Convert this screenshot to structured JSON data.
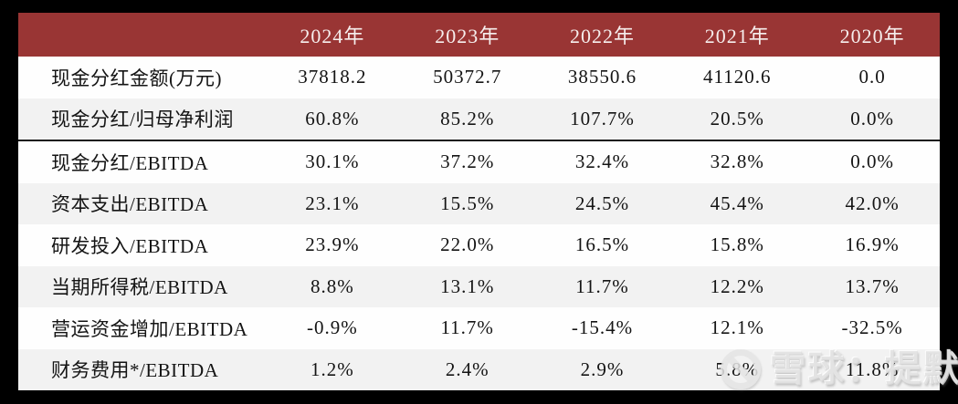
{
  "colors": {
    "header_bg": "#993534",
    "header_fg": "#f6eeed",
    "row_bg": "#fefefe",
    "row_alt_bg": "#f2f2f2",
    "frame_bg": "#000000",
    "text": "#141414"
  },
  "chart_data": {
    "type": "table",
    "columns": [
      "",
      "2024年",
      "2023年",
      "2022年",
      "2021年",
      "2020年"
    ],
    "rows": [
      {
        "label": "现金分红金额(万元)",
        "values": [
          "37818.2",
          "50372.7",
          "38550.6",
          "41120.6",
          "0.0"
        ]
      },
      {
        "label": "现金分红/归母净利润",
        "values": [
          "60.8%",
          "85.2%",
          "107.7%",
          "20.5%",
          "0.0%"
        ]
      },
      {
        "label": "现金分红/EBITDA",
        "values": [
          "30.1%",
          "37.2%",
          "32.4%",
          "32.8%",
          "0.0%"
        ]
      },
      {
        "label": "资本支出/EBITDA",
        "values": [
          "23.1%",
          "15.5%",
          "24.5%",
          "45.4%",
          "42.0%"
        ]
      },
      {
        "label": "研发投入/EBITDA",
        "values": [
          "23.9%",
          "22.0%",
          "16.5%",
          "15.8%",
          "16.9%"
        ]
      },
      {
        "label": "当期所得税/EBITDA",
        "values": [
          "8.8%",
          "13.1%",
          "11.7%",
          "12.2%",
          "13.7%"
        ]
      },
      {
        "label": "营运资金增加/EBITDA",
        "values": [
          "-0.9%",
          "11.7%",
          "-15.4%",
          "12.1%",
          "-32.5%"
        ]
      },
      {
        "label": "财务费用*/EBITDA",
        "values": [
          "1.2%",
          "2.4%",
          "2.9%",
          "5.8%",
          "11.8%"
        ]
      }
    ],
    "divider_after_row_index": 1,
    "layout": {
      "grid": false,
      "alternating_row_shading": true,
      "header_position": "top"
    }
  },
  "watermark": {
    "icon": "xueqiu-snowball-logo",
    "text": "雪球：提默西"
  }
}
